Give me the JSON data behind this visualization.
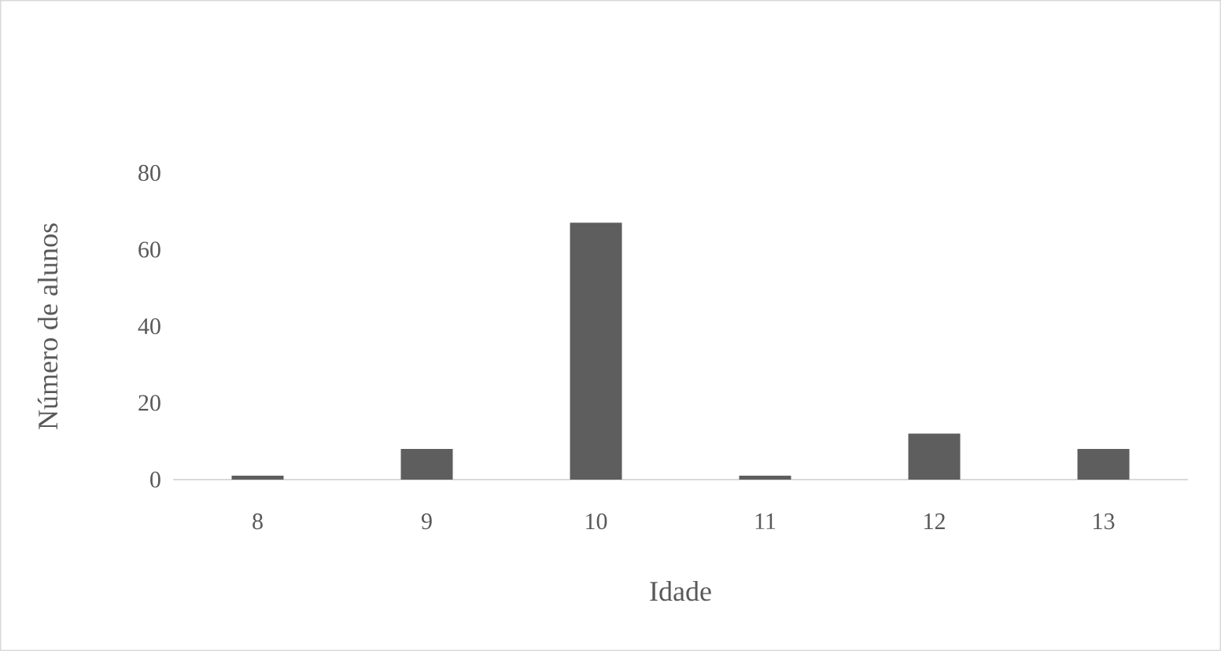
{
  "chart_data": {
    "type": "bar",
    "xlabel": "Idade",
    "ylabel": "Número de alunos",
    "categories": [
      "8",
      "9",
      "10",
      "11",
      "12",
      "13"
    ],
    "values": [
      1,
      8,
      67,
      1,
      12,
      8
    ],
    "color": "#5e5e5e",
    "ylim": [
      0,
      80
    ],
    "yticks": [
      0,
      20,
      40,
      60,
      80
    ],
    "grid": false
  }
}
